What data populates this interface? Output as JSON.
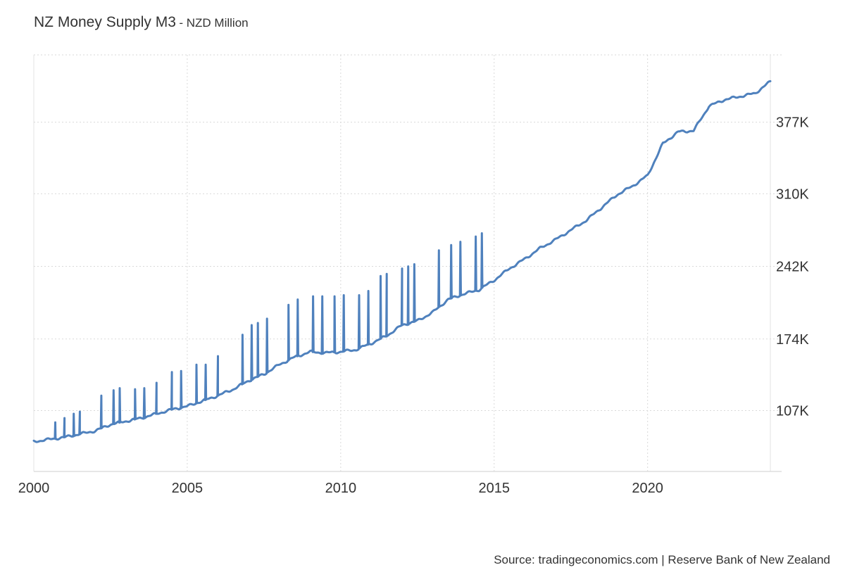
{
  "header": {
    "title": "NZ Money Supply M3",
    "subtitle": "- NZD Million"
  },
  "footer": {
    "source": "Source: tradingeconomics.com | Reserve Bank of New Zealand"
  },
  "chart_data": {
    "type": "line",
    "title": "NZ Money Supply M3",
    "subtitle": "- NZD Million",
    "xlabel": "",
    "ylabel": "",
    "xlim": [
      2000,
      2024
    ],
    "ylim": [
      50,
      440
    ],
    "x_ticks": [
      2000,
      2005,
      2010,
      2015,
      2020
    ],
    "x_tick_labels": [
      "2000",
      "2005",
      "2010",
      "2015",
      "2020"
    ],
    "y_ticks": [
      107,
      174,
      242,
      310,
      377
    ],
    "y_tick_labels": [
      "107K",
      "174K",
      "242K",
      "310K",
      "377K"
    ],
    "y_axis_position": "right",
    "grid": true,
    "legend": "none",
    "line_color": "#4f81bd",
    "series": [
      {
        "name": "",
        "x": [
          2000.0,
          2000.5,
          2001.0,
          2001.5,
          2002.0,
          2002.5,
          2003.0,
          2003.5,
          2004.0,
          2004.5,
          2005.0,
          2005.5,
          2006.0,
          2006.5,
          2007.0,
          2007.5,
          2008.0,
          2008.5,
          2009.0,
          2009.5,
          2010.0,
          2010.5,
          2011.0,
          2011.5,
          2012.0,
          2012.5,
          2013.0,
          2013.5,
          2014.0,
          2014.5,
          2015.0,
          2015.5,
          2016.0,
          2016.5,
          2017.0,
          2017.5,
          2018.0,
          2018.5,
          2019.0,
          2019.5,
          2020.0,
          2020.5,
          2021.0,
          2021.5,
          2022.0,
          2022.5,
          2023.0,
          2023.5,
          2024.0
        ],
        "values": [
          78,
          80,
          82,
          85,
          88,
          94,
          97,
          100,
          104,
          108,
          111,
          116,
          121,
          127,
          135,
          141,
          150,
          157,
          162,
          161,
          162,
          164,
          170,
          177,
          187,
          191,
          199,
          211,
          216,
          220,
          229,
          240,
          249,
          259,
          267,
          276,
          285,
          297,
          309,
          317,
          327,
          357,
          368,
          369,
          392,
          398,
          401,
          404,
          415
        ]
      }
    ],
    "spikes": {
      "description_years": [
        2000.7,
        2001.0,
        2001.3,
        2001.5,
        2002.2,
        2002.6,
        2002.8,
        2003.3,
        2003.6,
        2004.0,
        2004.5,
        2004.8,
        2005.3,
        2005.6,
        2006.0,
        2006.8,
        2007.1,
        2007.3,
        2007.6,
        2008.3,
        2008.6,
        2009.1,
        2009.4,
        2009.8,
        2010.1,
        2010.6,
        2010.9,
        2011.3,
        2011.5,
        2012.0,
        2012.2,
        2012.4,
        2013.2,
        2013.6,
        2013.9,
        2014.4,
        2014.6
      ],
      "peak_values": [
        96,
        100,
        104,
        106,
        121,
        126,
        128,
        127,
        128,
        133,
        143,
        144,
        150,
        150,
        158,
        178,
        187,
        189,
        193,
        206,
        211,
        214,
        214,
        214,
        215,
        215,
        219,
        233,
        235,
        240,
        242,
        244,
        257,
        262,
        265,
        270,
        273
      ]
    }
  }
}
